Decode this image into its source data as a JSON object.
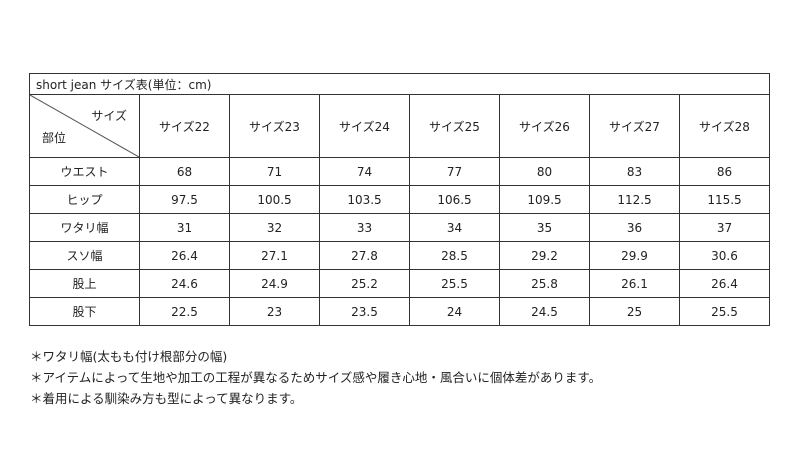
{
  "table": {
    "title": "short jean サイズ表(単位：cm)",
    "corner_col_label": "サイズ",
    "corner_row_label": "部位",
    "columns": [
      "サイズ22",
      "サイズ23",
      "サイズ24",
      "サイズ25",
      "サイズ26",
      "サイズ27",
      "サイズ28"
    ],
    "rows": [
      {
        "label": "ウエスト",
        "values": [
          "68",
          "71",
          "74",
          "77",
          "80",
          "83",
          "86"
        ]
      },
      {
        "label": "ヒップ",
        "values": [
          "97.5",
          "100.5",
          "103.5",
          "106.5",
          "109.5",
          "112.5",
          "115.5"
        ]
      },
      {
        "label": "ワタリ幅",
        "values": [
          "31",
          "32",
          "33",
          "34",
          "35",
          "36",
          "37"
        ]
      },
      {
        "label": "スソ幅",
        "values": [
          "26.4",
          "27.1",
          "27.8",
          "28.5",
          "29.2",
          "29.9",
          "30.6"
        ]
      },
      {
        "label": "股上",
        "values": [
          "24.6",
          "24.9",
          "25.2",
          "25.5",
          "25.8",
          "26.1",
          "26.4"
        ]
      },
      {
        "label": "股下",
        "values": [
          "22.5",
          "23",
          "23.5",
          "24",
          "24.5",
          "25",
          "25.5"
        ]
      }
    ]
  },
  "notes": [
    "＊ワタリ幅(太もも付け根部分の幅)",
    "＊アイテムによって生地や加工の工程が異なるためサイズ感や履き心地・風合いに個体差があります。",
    "＊着用による馴染み方も型によって異なります。"
  ]
}
